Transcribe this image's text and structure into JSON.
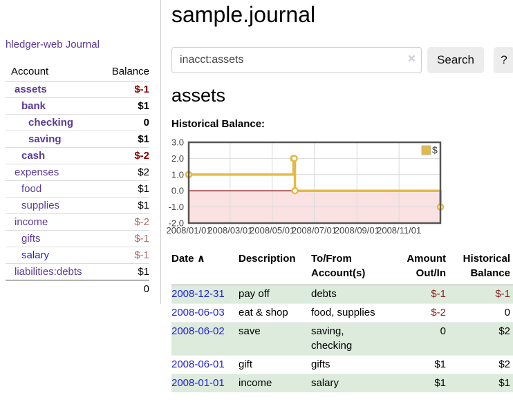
{
  "app": {
    "brand": "hledger-web"
  },
  "colors": {
    "link_purple": "#5b3a9a",
    "link_blue": "#2222dd",
    "negative_strong": "#8b0000",
    "negative_faded": "#b46a6a",
    "row_green": "#dcebdc"
  },
  "sidebar": {
    "nav": {
      "journal_label": "Journal"
    },
    "accounts": {
      "header": {
        "account": "Account",
        "balance": "Balance"
      },
      "rows": [
        {
          "name": "assets",
          "balance": "$-1",
          "indent": 0,
          "row_cls": "bold",
          "bal_cls": "neg-strong"
        },
        {
          "name": "bank",
          "balance": "$1",
          "indent": 1,
          "row_cls": "bold",
          "bal_cls": ""
        },
        {
          "name": "checking",
          "balance": "0",
          "indent": 2,
          "row_cls": "bold",
          "bal_cls": ""
        },
        {
          "name": "saving",
          "balance": "$1",
          "indent": 2,
          "row_cls": "bold",
          "bal_cls": ""
        },
        {
          "name": "cash",
          "balance": "$-2",
          "indent": 1,
          "row_cls": "bold",
          "bal_cls": "neg-strong"
        },
        {
          "name": "expenses",
          "balance": "$2",
          "indent": 0,
          "row_cls": "",
          "bal_cls": ""
        },
        {
          "name": "food",
          "balance": "$1",
          "indent": 1,
          "row_cls": "",
          "bal_cls": ""
        },
        {
          "name": "supplies",
          "balance": "$1",
          "indent": 1,
          "row_cls": "",
          "bal_cls": ""
        },
        {
          "name": "income",
          "balance": "$-2",
          "indent": 0,
          "row_cls": "",
          "bal_cls": "neg-faded"
        },
        {
          "name": "gifts",
          "balance": "$-1",
          "indent": 1,
          "row_cls": "",
          "bal_cls": "neg-faded"
        },
        {
          "name": "salary",
          "balance": "$-1",
          "indent": 1,
          "row_cls": "blue",
          "bal_cls": "neg-faded"
        },
        {
          "name": "liabilities:debts",
          "balance": "$1",
          "indent": 0,
          "row_cls": "",
          "bal_cls": ""
        }
      ],
      "total": "0"
    }
  },
  "main": {
    "title": "sample.journal",
    "search": {
      "value": "inacct:assets",
      "clear_icon": "×",
      "search_button": "Search",
      "help_button": "?"
    },
    "section_title": "assets",
    "chart_label": "Historical Balance:"
  },
  "chart_data": {
    "type": "line",
    "title": "Historical Balance:",
    "step": true,
    "xlim": [
      "2008-01-01",
      "2008-12-31"
    ],
    "ylim": [
      -2,
      3
    ],
    "grid": true,
    "legend_position": "top-right",
    "legend": {
      "label": "$"
    },
    "series": [
      {
        "name": "$",
        "color": "#e2ba45",
        "points": [
          [
            "2008-01-01",
            1
          ],
          [
            "2008-06-01",
            2
          ],
          [
            "2008-06-02",
            2
          ],
          [
            "2008-06-03",
            0
          ],
          [
            "2008-12-31",
            -1
          ]
        ]
      }
    ],
    "y_ticks": [
      [
        3,
        "3.0"
      ],
      [
        2,
        "2.0"
      ],
      [
        1,
        "1.0"
      ],
      [
        0,
        "0.0"
      ],
      [
        -1,
        "-1.0"
      ],
      [
        -2,
        "-2.0"
      ]
    ],
    "x_ticks": [
      [
        "2008-01-01",
        "2008/01/01"
      ],
      [
        "2008-03-01",
        "2008/03/01"
      ],
      [
        "2008-05-01",
        "2008/05/01"
      ],
      [
        "2008-07-01",
        "2008/07/01"
      ],
      [
        "2008-09-01",
        "2008/09/01"
      ],
      [
        "2008-11-01",
        "2008/11/01"
      ]
    ],
    "colors": {
      "negative_region": "#fbe2e2",
      "zero_line": "#941f1f",
      "grid": "#d9d9d9",
      "border": "#555555",
      "tick_label": "#444444",
      "marker_fill": "#ffffff"
    }
  },
  "transactions": {
    "columns": {
      "date": "Date",
      "description": "Description",
      "accounts": "To/From Account(s)",
      "amount": "Amount Out/In",
      "balance": "Historical Balance"
    },
    "sort_icon": "∧",
    "rows": [
      {
        "date": "2008-12-31",
        "description": "pay off",
        "accounts": "debts",
        "amount": "$-1",
        "balance": "$-1",
        "amount_cls": "neg",
        "balance_cls": "neg",
        "row_cls": "green"
      },
      {
        "date": "2008-06-03",
        "description": "eat & shop",
        "accounts": "food, supplies",
        "amount": "$-2",
        "balance": "0",
        "amount_cls": "neg",
        "balance_cls": "",
        "row_cls": ""
      },
      {
        "date": "2008-06-02",
        "description": "save",
        "accounts": "saving, checking",
        "amount": "0",
        "balance": "$2",
        "amount_cls": "",
        "balance_cls": "",
        "row_cls": "green"
      },
      {
        "date": "2008-06-01",
        "description": "gift",
        "accounts": "gifts",
        "amount": "$1",
        "balance": "$2",
        "amount_cls": "",
        "balance_cls": "",
        "row_cls": ""
      },
      {
        "date": "2008-01-01",
        "description": "income",
        "accounts": "salary",
        "amount": "$1",
        "balance": "$1",
        "amount_cls": "",
        "balance_cls": "",
        "row_cls": "green"
      }
    ]
  }
}
